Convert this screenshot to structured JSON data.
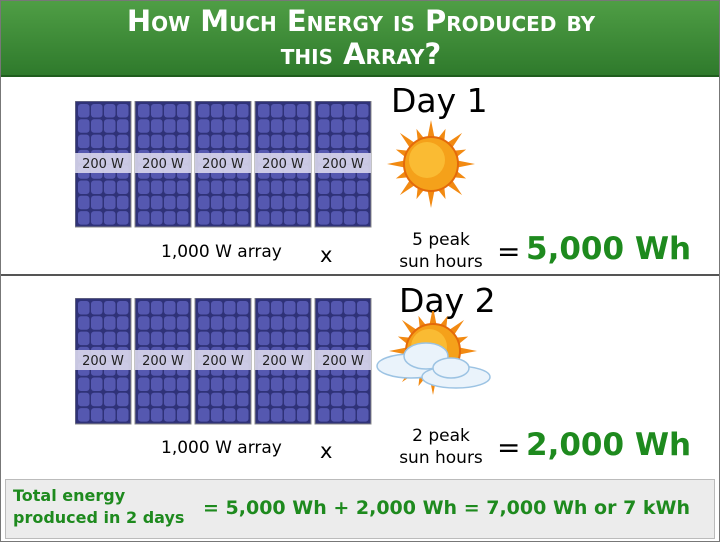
{
  "title": "How Much Energy is Produced by this Array?",
  "days": [
    {
      "label": "Day 1",
      "panels": [
        "200 W",
        "200 W",
        "200 W",
        "200 W",
        "200 W"
      ],
      "array": "1,000 W array",
      "times": "x",
      "sun_hours": "5 peak sun hours",
      "equals": "=",
      "result": "5,000 Wh"
    },
    {
      "label": "Day 2",
      "panels": [
        "200 W",
        "200 W",
        "200 W",
        "200 W",
        "200 W"
      ],
      "array": "1,000 W array",
      "times": "x",
      "sun_hours": "2 peak sun hours",
      "equals": "=",
      "result": "2,000 Wh"
    }
  ],
  "footer": {
    "label": "Total energy produced in 2 days",
    "equation": "= 5,000 Wh + 2,000 Wh = 7,000 Wh or 7 kWh"
  }
}
